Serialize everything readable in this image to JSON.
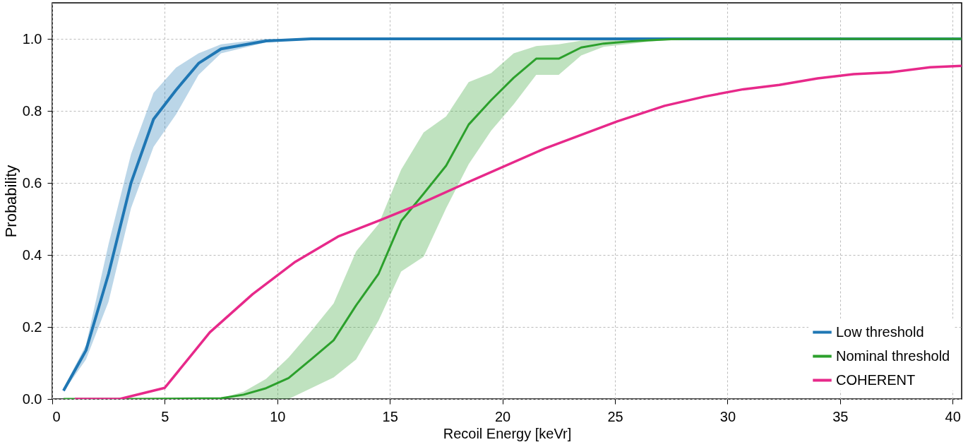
{
  "chart_data": {
    "type": "line",
    "xlabel": "Recoil Energy [keVr]",
    "ylabel": "Probability",
    "xlim": [
      0,
      40.4
    ],
    "xticks": [
      0,
      5,
      10,
      15,
      20,
      25,
      30,
      35,
      40
    ],
    "ylim": [
      0,
      1.1
    ],
    "yticks": [
      {
        "value": 0,
        "label": "0.0"
      },
      {
        "value": 0.2,
        "label": "0.2"
      },
      {
        "value": 0.4,
        "label": "0.4"
      },
      {
        "value": 0.6,
        "label": "0.6"
      },
      {
        "value": 0.8,
        "label": "0.8"
      },
      {
        "value": 1,
        "label": "1.0"
      }
    ],
    "grid": true,
    "legend": "bottom right",
    "line_style": "solid",
    "marker": "none",
    "series": [
      {
        "name": "Low threshold",
        "color": "#1f77b4",
        "x": [
          0.5,
          1.5,
          2.5,
          3.5,
          4.5,
          5.5,
          6.5,
          7.5,
          9.5,
          11.5,
          15,
          20,
          25,
          30,
          35,
          40.4
        ],
        "values": [
          0.023,
          0.135,
          0.347,
          0.6,
          0.777,
          0.858,
          0.932,
          0.972,
          0.994,
          1.0,
          1.0,
          1.0,
          1.0,
          1.0,
          1.0,
          1.0
        ],
        "lower": [
          0.02,
          0.11,
          0.27,
          0.53,
          0.7,
          0.79,
          0.9,
          0.96,
          0.99,
          1.0,
          1.0,
          1.0,
          1.0,
          1.0,
          1.0,
          1.0
        ],
        "upper": [
          0.03,
          0.15,
          0.43,
          0.68,
          0.85,
          0.92,
          0.96,
          0.985,
          1.0,
          1.0,
          1.0,
          1.0,
          1.0,
          1.0,
          1.0,
          1.0
        ]
      },
      {
        "name": "Nominal threshold",
        "color": "#2ca02c",
        "x": [
          0.5,
          3.5,
          7.5,
          8.5,
          9.5,
          10.5,
          11.5,
          12.5,
          13.5,
          14.5,
          15.5,
          16.5,
          17.5,
          18.5,
          19.5,
          20.5,
          21.5,
          22.5,
          23.5,
          24.5,
          25.5,
          26.5,
          27.5,
          28.5,
          40.4
        ],
        "values": [
          0.0,
          0.0,
          0.002,
          0.012,
          0.03,
          0.058,
          0.11,
          0.163,
          0.26,
          0.348,
          0.494,
          0.57,
          0.648,
          0.762,
          0.83,
          0.892,
          0.945,
          0.945,
          0.976,
          0.987,
          0.992,
          0.996,
          0.999,
          1.0,
          1.0
        ],
        "lower": [
          0.0,
          0.0,
          0.002,
          0.003,
          0.0,
          0.0,
          0.03,
          0.06,
          0.11,
          0.218,
          0.354,
          0.395,
          0.53,
          0.652,
          0.745,
          0.818,
          0.9,
          0.9,
          0.954,
          0.978,
          0.985,
          0.992,
          0.997,
          1.0,
          1.0
        ],
        "upper": [
          0.0,
          0.0,
          0.002,
          0.02,
          0.056,
          0.115,
          0.188,
          0.265,
          0.41,
          0.486,
          0.637,
          0.74,
          0.785,
          0.88,
          0.905,
          0.96,
          0.98,
          0.985,
          0.995,
          0.998,
          1.0,
          1.0,
          1.0,
          1.0,
          1.0
        ]
      },
      {
        "name": "COHERENT",
        "color": "#e7298a",
        "x": [
          1.0,
          3.0,
          5.0,
          7.0,
          8.9,
          10.8,
          12.7,
          14.5,
          16.2,
          18.4,
          21.9,
          25.1,
          27.2,
          29.0,
          30.7,
          32.3,
          34.0,
          35.6,
          37.2,
          39.0,
          40.4
        ],
        "values": [
          0.0,
          0.0,
          0.031,
          0.185,
          0.291,
          0.381,
          0.451,
          0.495,
          0.538,
          0.6,
          0.696,
          0.771,
          0.814,
          0.84,
          0.86,
          0.872,
          0.89,
          0.902,
          0.907,
          0.921,
          0.925
        ]
      }
    ]
  }
}
